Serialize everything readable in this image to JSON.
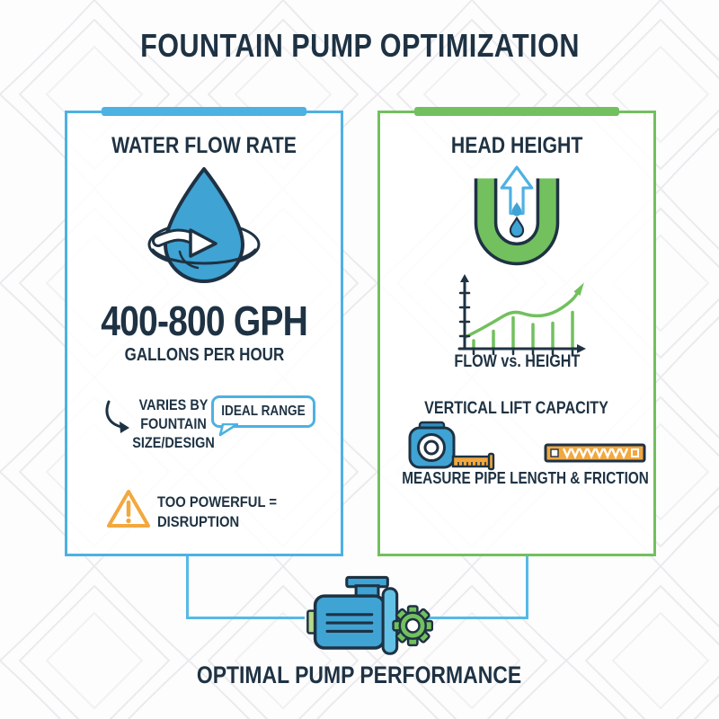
{
  "title": "FOUNTAIN PUMP OPTIMIZATION",
  "colors": {
    "navy": "#1e3243",
    "blue": "#4db1e2",
    "blue_fill": "#3fa3d4",
    "green": "#72c05e",
    "orange": "#f2a83e",
    "bg": "#fdfdfe"
  },
  "left_panel": {
    "title": "WATER FLOW RATE",
    "value": "400-800 GPH",
    "value_caption": "GALLONS PER HOUR",
    "note_lines": [
      "VARIES BY",
      "FOUNTAIN",
      "SIZE/DESIGN"
    ],
    "badge": "IDEAL RANGE",
    "warning_lines": [
      "TOO POWERFUL =",
      "DISRUPTION"
    ]
  },
  "right_panel": {
    "title": "HEAD HEIGHT",
    "chart_label": "FLOW vs. HEIGHT",
    "subtitle": "VERTICAL LIFT CAPACITY",
    "caption": "MEASURE PIPE LENGTH & FRICTION"
  },
  "footer": {
    "label": "OPTIMAL PUMP PERFORMANCE"
  },
  "chart_data": {
    "type": "line",
    "title": "FLOW vs. HEIGHT",
    "x": [
      1,
      2,
      3,
      4,
      5,
      6
    ],
    "series": [
      {
        "name": "flow-height-curve",
        "values": [
          14,
          30,
          48,
          38,
          42,
          62
        ]
      },
      {
        "name": "stems",
        "values": [
          12,
          26,
          46,
          36,
          38,
          54
        ]
      }
    ],
    "ylim": [
      0,
      100
    ],
    "xlabel": "",
    "ylabel": "",
    "grid": false,
    "annotations": [
      "rising trend arrow at upper right"
    ]
  }
}
